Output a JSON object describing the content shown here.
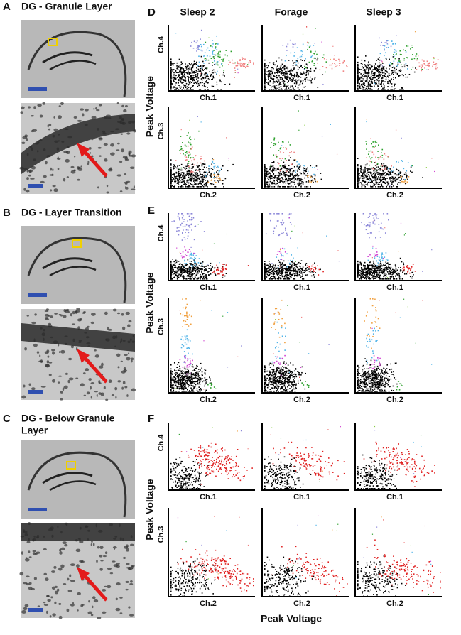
{
  "histology": [
    {
      "letter": "A",
      "title_lines": [
        "DG - Granule Layer"
      ]
    },
    {
      "letter": "B",
      "title_lines": [
        "DG - Layer Transition"
      ]
    },
    {
      "letter": "C",
      "title_lines": [
        "DG - Below Granule",
        "Layer"
      ]
    }
  ],
  "columns": [
    "Sleep 2",
    "Forage",
    "Sleep 3"
  ],
  "rows": [
    {
      "letter": "D",
      "y_label": "Peak Voltage",
      "plots": [
        {
          "y_axis": "Ch.4",
          "x_axis": "Ch.1"
        },
        {
          "y_axis": "Ch.3",
          "x_axis": "Ch.2"
        }
      ]
    },
    {
      "letter": "E",
      "y_label": "Peak Voltage",
      "plots": [
        {
          "y_axis": "Ch.4",
          "x_axis": "Ch.1"
        },
        {
          "y_axis": "Ch.3",
          "x_axis": "Ch.2"
        }
      ]
    },
    {
      "letter": "F",
      "y_label": "Peak Voltage",
      "plots": [
        {
          "y_axis": "Ch.4",
          "x_axis": "Ch.1"
        },
        {
          "y_axis": "Ch.3",
          "x_axis": "Ch.2"
        }
      ]
    }
  ],
  "x_label": "Peak Voltage"
}
